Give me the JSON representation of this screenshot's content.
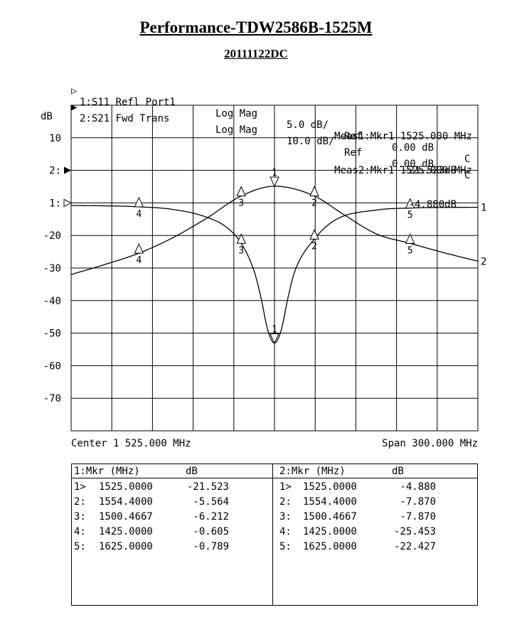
{
  "title": "Performance-TDW2586B-1525M",
  "subtitle": "20111122DC",
  "traces": [
    {
      "marker": "▷",
      "label": "1:S11 Refl Port1",
      "format": "Log Mag",
      "scale": "5.0 dB/",
      "ref": "Ref",
      "ref_value": "0.00 dB",
      "flag": "C"
    },
    {
      "marker": "▶",
      "label": "2:S21 Fwd Trans",
      "format": "Log Mag",
      "scale": "10.0 dB/",
      "ref": "Ref",
      "ref_value": "0.00 dB",
      "flag": "C"
    }
  ],
  "meas": [
    {
      "line1": "Meas1:Mkr1 1525.000 MHz",
      "line2": "-21.523dB"
    },
    {
      "line1": "Meas2:Mkr1 1525.000 MHz",
      "line2": "-4.880dB"
    }
  ],
  "y_unit": "dB",
  "ref_labels": {
    "trace2": "2:",
    "trace1": "1:"
  },
  "footer": {
    "center": "Center 1 525.000 MHz",
    "span": "Span 300.000 MHz"
  },
  "marker_table": {
    "left": {
      "header": {
        "mkr": "1:Mkr (MHz)",
        "unit": "dB"
      },
      "rows": [
        {
          "id": "1>",
          "freq": "1525.0000",
          "val": "-21.523"
        },
        {
          "id": "2:",
          "freq": "1554.4000",
          "val": "-5.564"
        },
        {
          "id": "3:",
          "freq": "1500.4667",
          "val": "-6.212"
        },
        {
          "id": "4:",
          "freq": "1425.0000",
          "val": "-0.605"
        },
        {
          "id": "5:",
          "freq": "1625.0000",
          "val": "-0.789"
        }
      ]
    },
    "right": {
      "header": {
        "mkr": "2:Mkr (MHz)",
        "unit": "dB"
      },
      "rows": [
        {
          "id": "1>",
          "freq": "1525.0000",
          "val": "-4.880"
        },
        {
          "id": "2:",
          "freq": "1554.4000",
          "val": "-7.870"
        },
        {
          "id": "3:",
          "freq": "1500.4667",
          "val": "-7.870"
        },
        {
          "id": "4:",
          "freq": "1425.0000",
          "val": "-25.453"
        },
        {
          "id": "5:",
          "freq": "1625.0000",
          "val": "-22.427"
        }
      ]
    }
  },
  "chart_data": {
    "type": "line",
    "x_range_mhz": [
      1375,
      1675
    ],
    "grid": true,
    "y_tick_labels": [
      "10",
      "2:",
      "1:",
      "-20",
      "-30",
      "-40",
      "-50",
      "-60",
      "-70"
    ],
    "series": [
      {
        "name": "1",
        "scale_db_per_div": 5,
        "ref_db": 0,
        "x": [
          1375,
          1400,
          1425,
          1450,
          1475,
          1490,
          1500.4667,
          1510,
          1515,
          1520,
          1525,
          1530,
          1535,
          1540,
          1554.4,
          1570,
          1600,
          1625,
          1650,
          1675
        ],
        "y": [
          -0.4,
          -0.45,
          -0.605,
          -1.0,
          -2.2,
          -3.8,
          -6.212,
          -10.5,
          -14.5,
          -19.5,
          -21.523,
          -19.5,
          -14.5,
          -10.5,
          -5.564,
          -2.6,
          -1.1,
          -0.789,
          -0.7,
          -0.68
        ]
      },
      {
        "name": "2",
        "scale_db_per_div": 10,
        "ref_db": 0,
        "x": [
          1375,
          1400,
          1425,
          1450,
          1475,
          1500.4667,
          1525,
          1554.4,
          1575,
          1600,
          1625,
          1650,
          1675
        ],
        "y": [
          -32,
          -28.9,
          -25.453,
          -20.7,
          -14.7,
          -7.87,
          -4.88,
          -7.87,
          -13.3,
          -19.5,
          -22.427,
          -25.3,
          -27.9
        ]
      }
    ],
    "markers": {
      "1": [
        {
          "id": "1",
          "x": 1525.0,
          "y": -21.523
        },
        {
          "id": "2",
          "x": 1554.4,
          "y": -5.564
        },
        {
          "id": "3",
          "x": 1500.4667,
          "y": -6.212
        },
        {
          "id": "4",
          "x": 1425.0,
          "y": -0.605
        },
        {
          "id": "5",
          "x": 1625.0,
          "y": -0.789
        }
      ],
      "2": [
        {
          "id": "1",
          "x": 1525.0,
          "y": -4.88
        },
        {
          "id": "2",
          "x": 1554.4,
          "y": -7.87
        },
        {
          "id": "3",
          "x": 1500.4667,
          "y": -7.87
        },
        {
          "id": "4",
          "x": 1425.0,
          "y": -25.453
        },
        {
          "id": "5",
          "x": 1625.0,
          "y": -22.427
        }
      ]
    }
  }
}
